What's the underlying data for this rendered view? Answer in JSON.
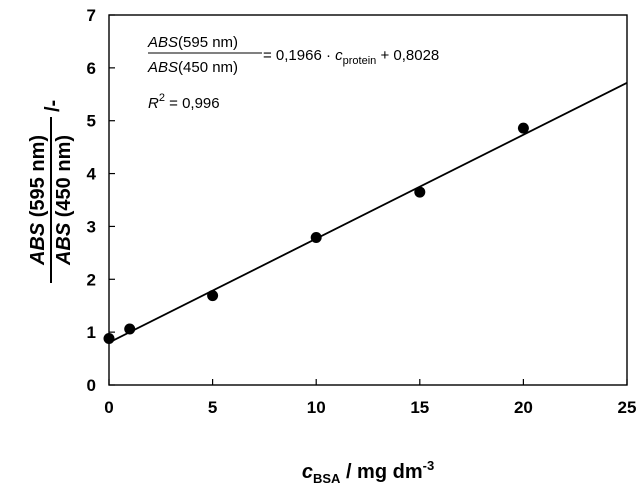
{
  "chart_data": {
    "type": "scatter",
    "x": [
      0,
      1,
      5,
      10,
      15,
      20
    ],
    "y": [
      0.88,
      1.06,
      1.69,
      2.79,
      3.65,
      4.86
    ],
    "xlim": [
      0,
      25
    ],
    "ylim": [
      0,
      7
    ],
    "xticks": [
      "0",
      "5",
      "10",
      "15",
      "20",
      "25"
    ],
    "yticks": [
      "0",
      "1",
      "2",
      "3",
      "4",
      "5",
      "6",
      "7"
    ],
    "fit": {
      "slope": 0.1966,
      "intercept": 0.8028
    },
    "grid": false,
    "xlabel": {
      "symbol": "c",
      "subscript": "BSA",
      "unit": " / mg dm",
      "superscript": "-3"
    },
    "ylabel": {
      "numerator": {
        "italic": "ABS",
        "rest": " (595 nm)"
      },
      "denominator": {
        "italic": "ABS",
        "rest": " (450 nm)"
      },
      "unit": " /-"
    },
    "equation": {
      "num_italic": "ABS",
      "num_rest": "(595 nm)",
      "den_italic": "ABS",
      "den_rest": "(450 nm)",
      "rhs_prefix": "= 0,1966 · ",
      "rhs_var": "c",
      "rhs_sub": "protein",
      "rhs_suffix": " + 0,8028"
    },
    "r2": {
      "symbol": "R",
      "sup": "2",
      "value": " = 0,996"
    }
  }
}
